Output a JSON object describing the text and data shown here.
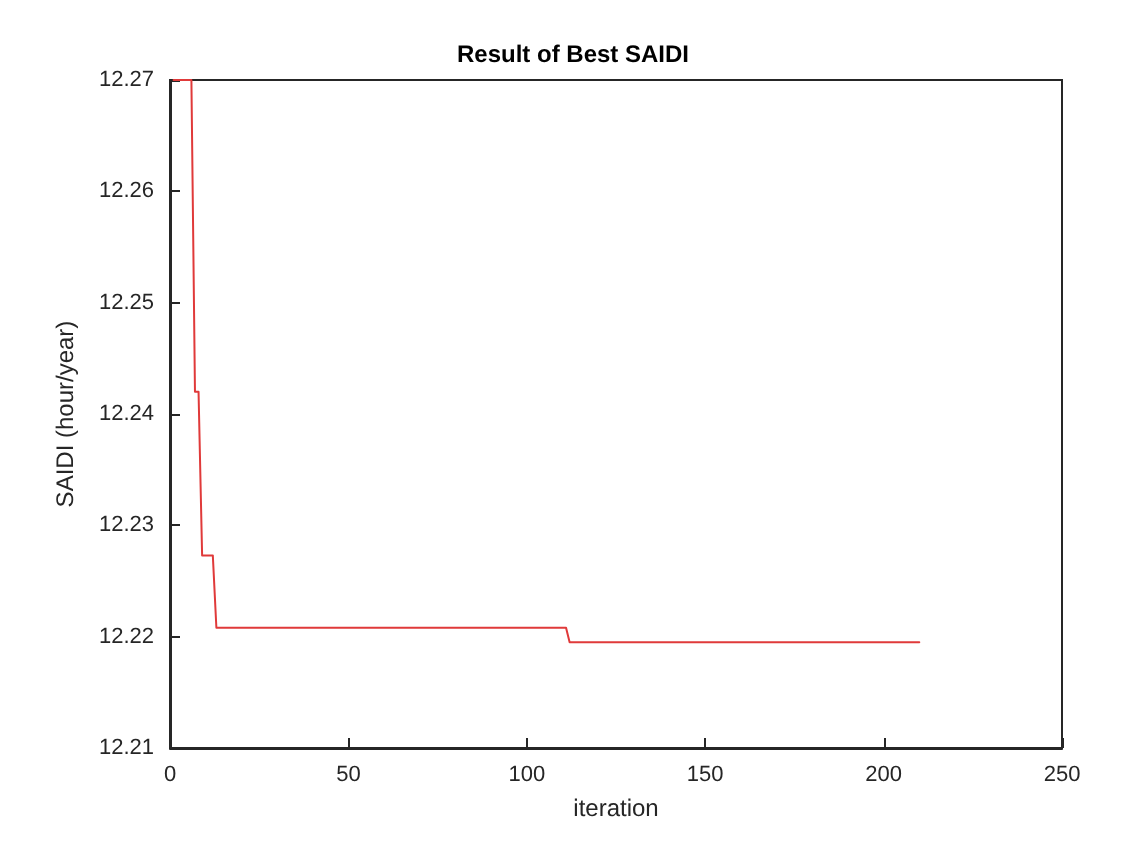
{
  "chart_data": {
    "type": "line",
    "title": "Result of Best SAIDI",
    "xlabel": "iteration",
    "ylabel": "SAIDI (hour/year)",
    "x": [
      1,
      6,
      7,
      8,
      9,
      12,
      13,
      111,
      112,
      210
    ],
    "series": [
      {
        "color": "#e03a3a",
        "values": [
          12.27,
          12.27,
          12.242,
          12.242,
          12.2273,
          12.2273,
          12.2208,
          12.2208,
          12.2195,
          12.2195
        ]
      }
    ],
    "xlim": [
      0,
      250
    ],
    "xticks": [
      0,
      50,
      100,
      150,
      200,
      250
    ],
    "ylim": [
      12.21,
      12.27
    ],
    "yticks": [
      12.21,
      12.22,
      12.23,
      12.24,
      12.25,
      12.26,
      12.27
    ],
    "grid": false,
    "marker": "none",
    "line_style": "solid"
  }
}
